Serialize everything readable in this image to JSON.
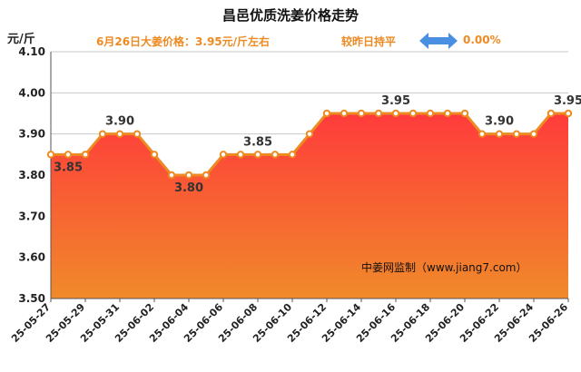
{
  "header": {
    "title": "昌邑优质洗姜价格走势",
    "unit": "元/斤",
    "price_note": "6月26日大姜价格：3.95元/斤左右",
    "compare_text": "较昨日持平",
    "change": "0.00%"
  },
  "colors": {
    "line": "#ee8a22",
    "fill_top": "#ff3b3b",
    "fill_bottom": "#f08a2a",
    "accent_text": "#ee8a22",
    "arrow": "#4a90e2"
  },
  "watermark": "中姜网监制（www.jiang7.com）",
  "chart_data": {
    "type": "area",
    "title": "昌邑优质洗姜价格走势",
    "ylabel": "元/斤",
    "ylim": [
      3.5,
      4.1
    ],
    "yticks": [
      "3.50",
      "3.60",
      "3.70",
      "3.80",
      "3.90",
      "4.00",
      "4.10"
    ],
    "grid": true,
    "x": [
      "25-05-27",
      "25-05-28",
      "25-05-29",
      "25-05-30",
      "25-05-31",
      "25-06-01",
      "25-06-02",
      "25-06-03",
      "25-06-04",
      "25-06-05",
      "25-06-06",
      "25-06-07",
      "25-06-08",
      "25-06-09",
      "25-06-10",
      "25-06-11",
      "25-06-12",
      "25-06-13",
      "25-06-14",
      "25-06-15",
      "25-06-16",
      "25-06-17",
      "25-06-18",
      "25-06-19",
      "25-06-20",
      "25-06-21",
      "25-06-22",
      "25-06-23",
      "25-06-24",
      "25-06-25",
      "25-06-26"
    ],
    "xtick_labels": [
      "25-05-27",
      "25-05-29",
      "25-05-31",
      "25-06-02",
      "25-06-04",
      "25-06-06",
      "25-06-08",
      "25-06-10",
      "25-06-12",
      "25-06-14",
      "25-06-16",
      "25-06-18",
      "25-06-20",
      "25-06-22",
      "25-06-24",
      "25-06-26"
    ],
    "values": [
      3.85,
      3.85,
      3.85,
      3.9,
      3.9,
      3.9,
      3.85,
      3.8,
      3.8,
      3.8,
      3.85,
      3.85,
      3.85,
      3.85,
      3.85,
      3.9,
      3.95,
      3.95,
      3.95,
      3.95,
      3.95,
      3.95,
      3.95,
      3.95,
      3.95,
      3.9,
      3.9,
      3.9,
      3.9,
      3.95,
      3.95
    ],
    "data_labels": [
      {
        "index": 1,
        "text": "3.85"
      },
      {
        "index": 4,
        "text": "3.90"
      },
      {
        "index": 8,
        "text": "3.80"
      },
      {
        "index": 12,
        "text": "3.85"
      },
      {
        "index": 20,
        "text": "3.95"
      },
      {
        "index": 26,
        "text": "3.90"
      },
      {
        "index": 30,
        "text": "3.95"
      }
    ]
  }
}
